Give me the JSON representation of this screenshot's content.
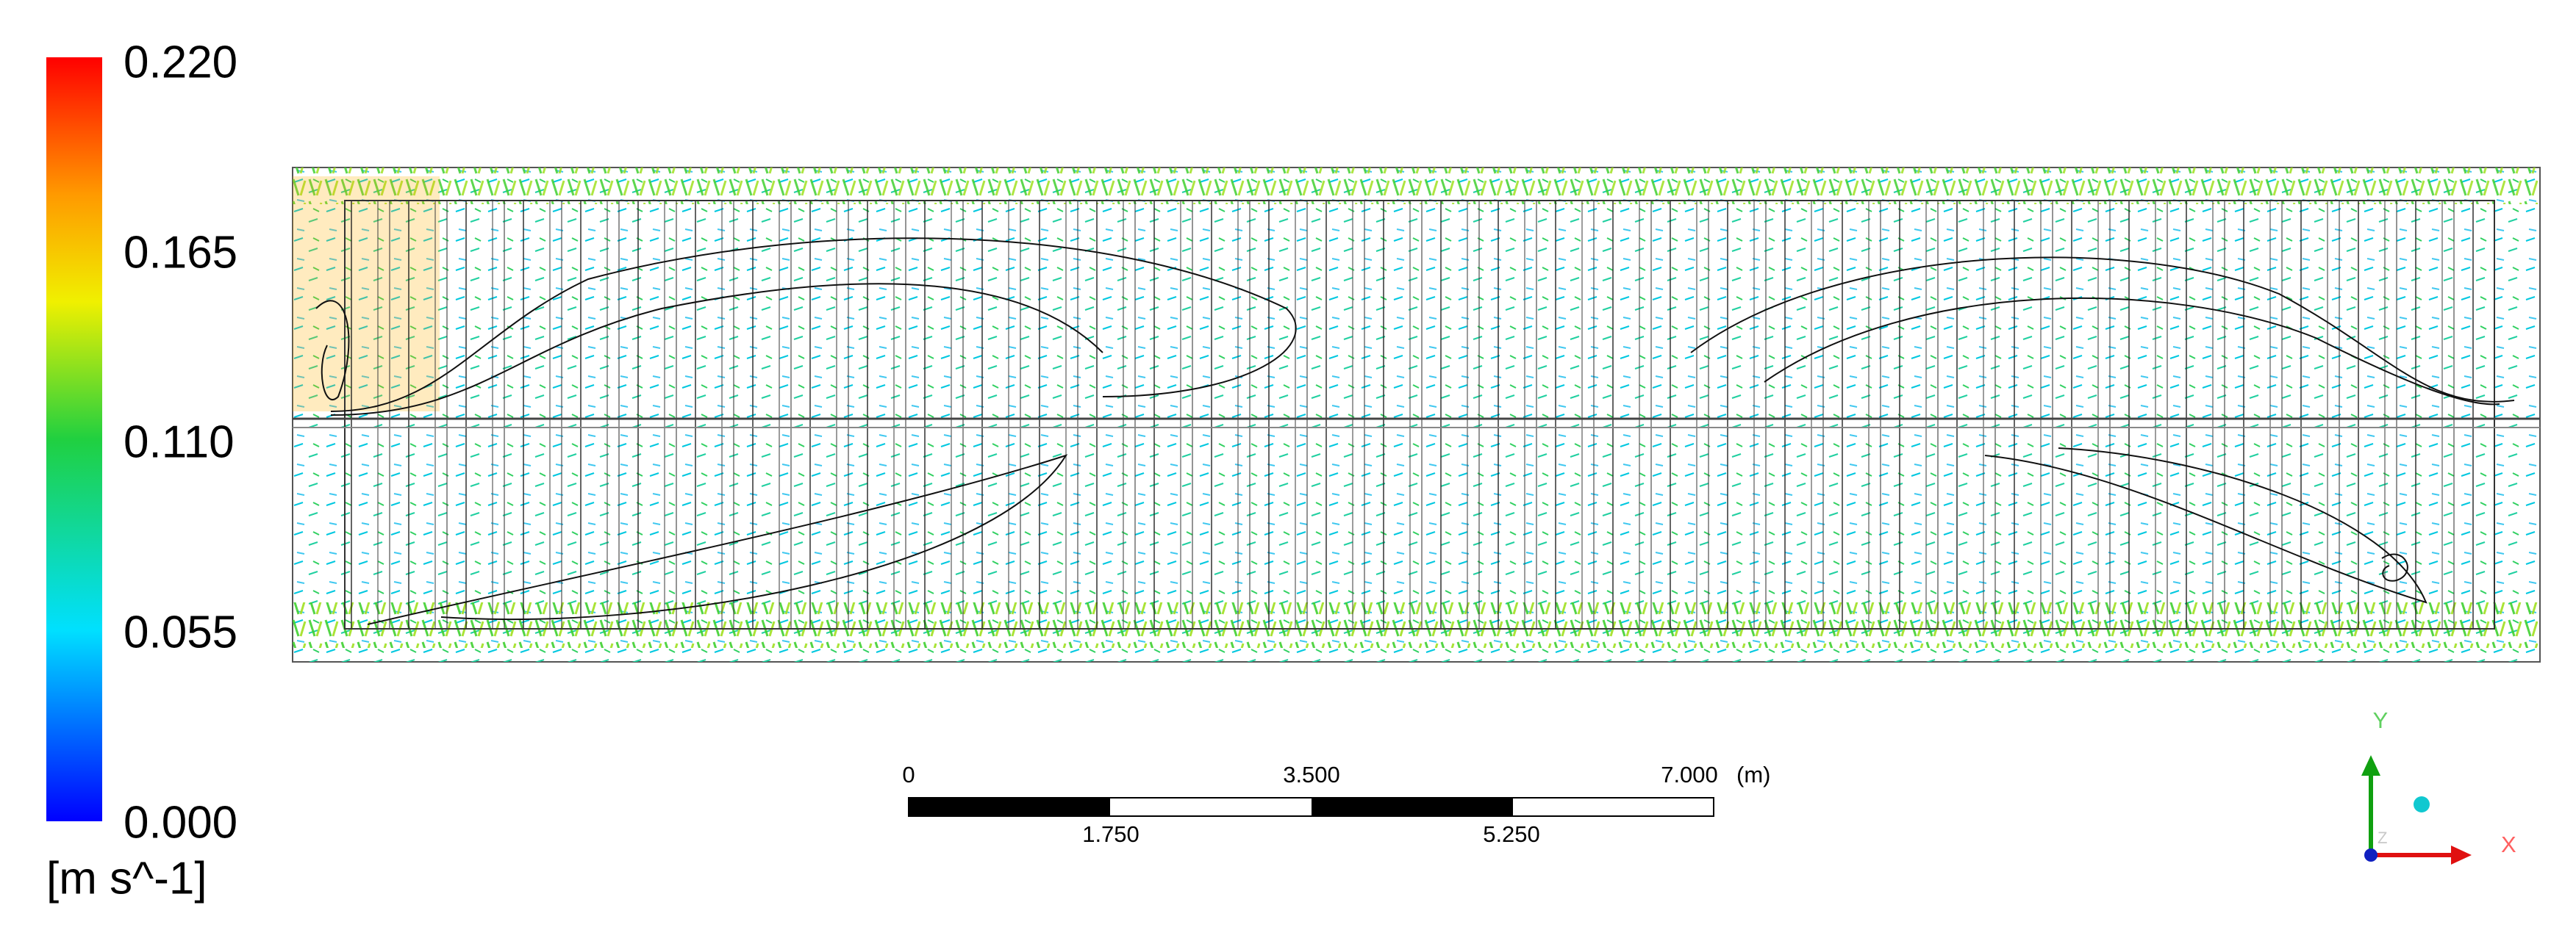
{
  "legend": {
    "ticks": [
      "0.220",
      "0.165",
      "0.110",
      "0.055",
      "0.000"
    ],
    "unit": "[m s^-1]"
  },
  "scale_bar": {
    "top_labels": [
      "0",
      "3.500",
      "7.000"
    ],
    "unit": "(m)",
    "bottom_labels": [
      "1.750",
      "5.250"
    ]
  },
  "triad": {
    "y_label": "Y",
    "x_label": "X",
    "z_label": "Z"
  }
}
